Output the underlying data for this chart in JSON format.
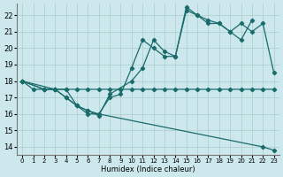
{
  "xlabel": "Humidex (Indice chaleur)",
  "bg_color": "#cce8ec",
  "grid_color": "#aacccc",
  "line_color": "#1a6b6b",
  "xlim": [
    -0.5,
    23.5
  ],
  "ylim": [
    13.5,
    22.7
  ],
  "xticks": [
    0,
    1,
    2,
    3,
    4,
    5,
    6,
    7,
    8,
    9,
    10,
    11,
    12,
    13,
    14,
    15,
    16,
    17,
    18,
    19,
    20,
    21,
    22,
    23
  ],
  "yticks": [
    14,
    15,
    16,
    17,
    18,
    19,
    20,
    21,
    22
  ],
  "series": [
    {
      "x": [
        0,
        1,
        2,
        3,
        4,
        5,
        6,
        7,
        8,
        9,
        10,
        11,
        12,
        13,
        14,
        15,
        16,
        17,
        18,
        19,
        20,
        21,
        22,
        23
      ],
      "y": [
        18,
        17.5,
        17.5,
        17.5,
        17.5,
        17.5,
        17.5,
        17.5,
        17.5,
        17.5,
        17.5,
        17.5,
        17.5,
        17.5,
        17.5,
        17.5,
        17.5,
        17.5,
        17.5,
        17.5,
        17.5,
        17.5,
        17.5,
        17.5
      ]
    },
    {
      "x": [
        0,
        2,
        3,
        4,
        5,
        6,
        7,
        8,
        10,
        11,
        12,
        13,
        14,
        15,
        16,
        17,
        18,
        19,
        20,
        21,
        22,
        23
      ],
      "y": [
        18,
        17.5,
        17.5,
        17.5,
        16.5,
        16.2,
        15.9,
        17.2,
        18.0,
        18.8,
        20.5,
        19.8,
        19.5,
        22.3,
        22.0,
        21.7,
        21.5,
        21.0,
        21.5,
        21.0,
        21.5,
        18.5
      ]
    },
    {
      "x": [
        0,
        2,
        3,
        4,
        5,
        6,
        7,
        8,
        9,
        10,
        11,
        12,
        13,
        14,
        15,
        16,
        17,
        18,
        19,
        20,
        21
      ],
      "y": [
        18,
        17.5,
        17.5,
        17.0,
        16.5,
        16.0,
        16.0,
        17.0,
        17.2,
        18.8,
        20.5,
        20.0,
        19.5,
        19.5,
        22.5,
        22.0,
        21.5,
        21.5,
        21.0,
        20.5,
        21.7
      ]
    },
    {
      "x": [
        0,
        3,
        4,
        5,
        6,
        7,
        22,
        23
      ],
      "y": [
        18,
        17.5,
        17.0,
        16.5,
        16.2,
        16.0,
        14.0,
        13.8
      ]
    }
  ]
}
